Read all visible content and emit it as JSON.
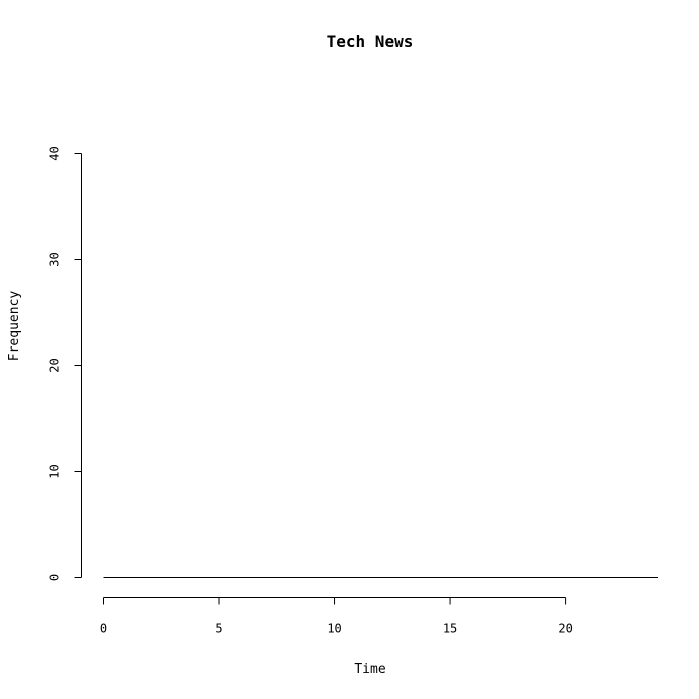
{
  "chart_data": {
    "type": "line",
    "title": "Tech News",
    "xlabel": "Time",
    "ylabel": "Frequency",
    "xlim": [
      0,
      24
    ],
    "ylim": [
      0,
      40
    ],
    "xticks": [
      0,
      5,
      10,
      15,
      20
    ],
    "yticks": [
      0,
      10,
      20,
      30,
      40
    ],
    "grid": false,
    "series": [
      {
        "x": [
          0,
          24
        ],
        "values": [
          0,
          0
        ],
        "color": "#000000"
      }
    ]
  }
}
